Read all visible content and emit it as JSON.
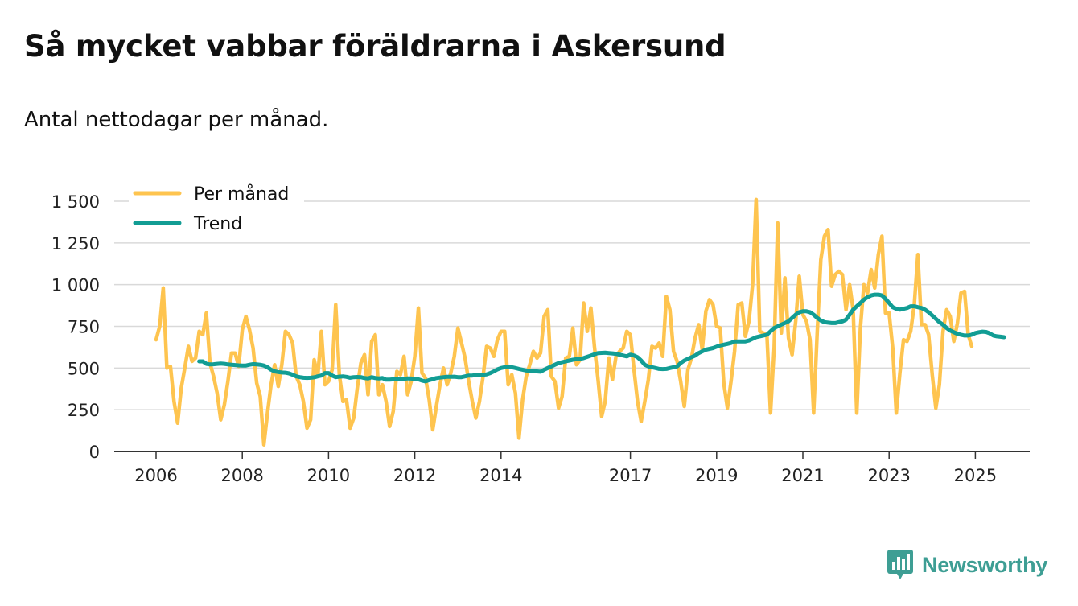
{
  "header": {
    "title": "Så mycket vabbar föräldrarna i Askersund",
    "subtitle": "Antal nettodagar per månad."
  },
  "colors": {
    "monthly": "#fec44f",
    "trend": "#129d94",
    "grid": "#d9d9d9",
    "axis": "#333333",
    "brand": "#3e9e94"
  },
  "brand": {
    "name": "Newsworthy",
    "icon": "newsworthy-logo-icon"
  },
  "chart_data": {
    "type": "line",
    "title": "Så mycket vabbar föräldrarna i Askersund",
    "subtitle": "Antal nettodagar per månad.",
    "xlabel": "",
    "ylabel": "",
    "x_start": "2006-01",
    "ylim": [
      0,
      1500
    ],
    "yticks": [
      0,
      250,
      500,
      750,
      1000,
      1250,
      1500
    ],
    "ytick_labels": [
      "0",
      "250",
      "500",
      "750",
      "1 000",
      "1 250",
      "1 500"
    ],
    "xticks": [
      {
        "year": 2006,
        "label": "2006"
      },
      {
        "year": 2008,
        "label": "2008"
      },
      {
        "year": 2010,
        "label": "2010"
      },
      {
        "year": 2012,
        "label": "2012"
      },
      {
        "year": 2014,
        "label": "2014"
      },
      {
        "year": 2017,
        "label": "2017"
      },
      {
        "year": 2019,
        "label": "2019"
      },
      {
        "year": 2021,
        "label": "2021"
      },
      {
        "year": 2023,
        "label": "2023"
      },
      {
        "year": 2025,
        "label": "2025"
      }
    ],
    "grid": true,
    "legend_position": "top-left",
    "series": [
      {
        "name": "Per månad",
        "start": "2006-01",
        "values": [
          670,
          750,
          980,
          500,
          510,
          300,
          170,
          380,
          500,
          630,
          540,
          560,
          720,
          700,
          830,
          530,
          450,
          350,
          190,
          280,
          420,
          590,
          590,
          510,
          730,
          810,
          730,
          620,
          410,
          330,
          40,
          230,
          400,
          520,
          390,
          520,
          720,
          700,
          650,
          450,
          400,
          300,
          140,
          190,
          550,
          450,
          720,
          400,
          420,
          490,
          880,
          460,
          300,
          310,
          140,
          200,
          380,
          530,
          580,
          340,
          660,
          700,
          340,
          400,
          300,
          150,
          240,
          480,
          460,
          570,
          340,
          420,
          570,
          860,
          470,
          440,
          310,
          130,
          270,
          400,
          500,
          400,
          470,
          570,
          740,
          650,
          560,
          420,
          300,
          200,
          300,
          450,
          630,
          620,
          570,
          670,
          720,
          720,
          400,
          460,
          350,
          80,
          310,
          450,
          520,
          600,
          560,
          590,
          810,
          850,
          450,
          420,
          260,
          330,
          560,
          570,
          740,
          520,
          550,
          890,
          720,
          860,
          630,
          430,
          210,
          300,
          560,
          430,
          570,
          600,
          620,
          720,
          700,
          490,
          300,
          180,
          300,
          430,
          630,
          620,
          650,
          570,
          930,
          850,
          600,
          540,
          420,
          270,
          490,
          560,
          680,
          760,
          610,
          840,
          910,
          880,
          750,
          740,
          410,
          260,
          420,
          600,
          880,
          890,
          690,
          780,
          1000,
          1510,
          720,
          710,
          700,
          230,
          620,
          1370,
          710,
          1040,
          680,
          580,
          780,
          1050,
          820,
          780,
          670,
          230,
          720,
          1150,
          1290,
          1330,
          990,
          1060,
          1080,
          1060,
          850,
          1000,
          850,
          230,
          740,
          1000,
          950,
          1090,
          980,
          1180,
          1290,
          830,
          830,
          620,
          230,
          470,
          670,
          660,
          720,
          880,
          1180,
          760,
          760,
          700,
          460,
          260,
          400,
          720,
          850,
          810,
          660,
          770,
          950,
          960,
          700,
          630
        ]
      },
      {
        "name": "Trend",
        "start": "2007-01",
        "values": [
          540,
          540,
          525,
          522,
          523,
          525,
          527,
          525,
          522,
          520,
          518,
          516,
          515,
          515,
          520,
          524,
          522,
          520,
          515,
          505,
          490,
          480,
          476,
          473,
          472,
          468,
          460,
          450,
          445,
          442,
          441,
          442,
          444,
          450,
          455,
          470,
          470,
          455,
          445,
          448,
          450,
          447,
          442,
          445,
          446,
          445,
          440,
          438,
          445,
          440,
          438,
          440,
          430,
          430,
          432,
          432,
          432,
          435,
          438,
          437,
          435,
          432,
          425,
          420,
          428,
          433,
          440,
          443,
          445,
          447,
          447,
          448,
          445,
          445,
          450,
          455,
          455,
          458,
          458,
          460,
          462,
          470,
          480,
          492,
          500,
          505,
          505,
          505,
          500,
          495,
          490,
          485,
          484,
          482,
          480,
          478,
          490,
          500,
          510,
          520,
          530,
          535,
          540,
          545,
          550,
          553,
          555,
          560,
          567,
          575,
          582,
          590,
          591,
          592,
          590,
          588,
          585,
          580,
          575,
          570,
          580,
          575,
          565,
          545,
          520,
          510,
          505,
          500,
          495,
          494,
          495,
          500,
          505,
          510,
          530,
          545,
          555,
          565,
          575,
          590,
          600,
          610,
          615,
          620,
          628,
          635,
          640,
          645,
          650,
          660,
          660,
          660,
          660,
          665,
          675,
          685,
          690,
          695,
          700,
          720,
          740,
          750,
          760,
          770,
          780,
          800,
          820,
          835,
          840,
          840,
          835,
          820,
          800,
          785,
          775,
          772,
          770,
          770,
          775,
          780,
          790,
          820,
          850,
          870,
          890,
          910,
          925,
          935,
          940,
          940,
          935,
          915,
          890,
          865,
          855,
          850,
          855,
          860,
          870,
          870,
          865,
          860,
          850,
          835,
          815,
          795,
          775,
          760,
          740,
          725,
          715,
          705,
          700,
          695,
          695,
          700,
          710,
          715,
          718,
          716,
          708,
          695,
          690,
          688,
          685
        ]
      }
    ]
  }
}
